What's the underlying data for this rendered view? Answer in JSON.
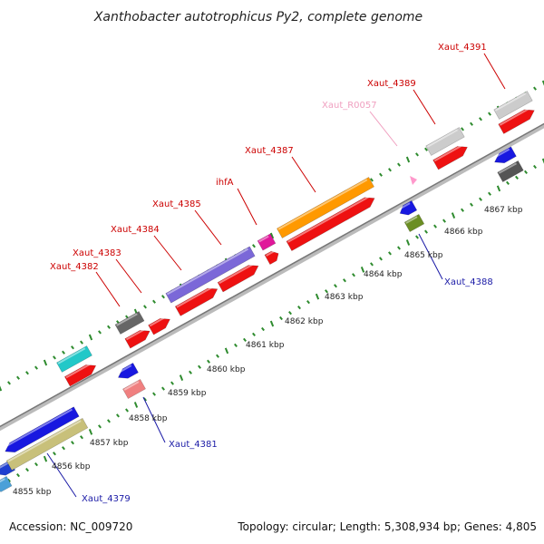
{
  "title": "Xanthobacter autotrophicus Py2, complete genome",
  "footer": {
    "accession": "Accession: NC_009720",
    "summary": "Topology: circular; Length: 5,308,934 bp; Genes: 4,805"
  },
  "colors": {
    "forward_label": "#cc0000",
    "reverse_label": "#1a1aa6",
    "rrna_label": "#f0a0c0",
    "backbone": "#999999",
    "tick_dots": "#2e8b2e"
  },
  "kbp_ticks": [
    "4855 kbp",
    "4856 kbp",
    "4857 kbp",
    "4858 kbp",
    "4859 kbp",
    "4860 kbp",
    "4861 kbp",
    "4862 kbp",
    "4863 kbp",
    "4864 kbp",
    "4865 kbp",
    "4866 kbp",
    "4867 kbp"
  ],
  "gene_labels": [
    {
      "text": "Xaut_4382",
      "strand": "forward"
    },
    {
      "text": "Xaut_4383",
      "strand": "forward"
    },
    {
      "text": "Xaut_4384",
      "strand": "forward"
    },
    {
      "text": "Xaut_4385",
      "strand": "forward"
    },
    {
      "text": "ihfA",
      "strand": "forward"
    },
    {
      "text": "Xaut_4387",
      "strand": "forward"
    },
    {
      "text": "Xaut_R0057",
      "strand": "rrna"
    },
    {
      "text": "Xaut_4389",
      "strand": "forward"
    },
    {
      "text": "Xaut_4391",
      "strand": "forward"
    },
    {
      "text": "Xaut_4388",
      "strand": "reverse"
    },
    {
      "text": "Xaut_4381",
      "strand": "reverse"
    },
    {
      "text": "Xaut_4379",
      "strand": "reverse"
    }
  ]
}
